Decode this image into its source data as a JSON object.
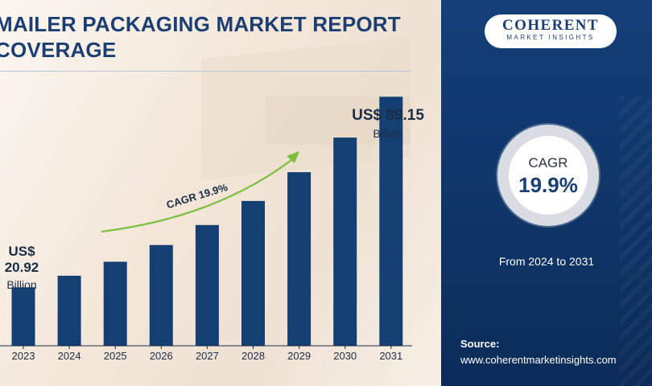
{
  "header": {
    "title": "MAILER PACKAGING MARKET REPORT COVERAGE"
  },
  "brand": {
    "name": "COHERENT",
    "tagline": "MARKET INSIGHTS"
  },
  "kpi": {
    "label": "CAGR",
    "value": "19.9%",
    "period": "From 2024 to 2031"
  },
  "source": {
    "label": "Source:",
    "url": "www.coherentmarketinsights.com"
  },
  "colors": {
    "bar": "#143f73",
    "arrow": "#7cbf3d",
    "panel": "#143f79",
    "title": "#1c3f73"
  },
  "chart_data": {
    "type": "bar",
    "categories": [
      "2023",
      "2024",
      "2025",
      "2026",
      "2027",
      "2028",
      "2029",
      "2030",
      "2031"
    ],
    "values": [
      20.92,
      25.08,
      30.07,
      36.06,
      43.24,
      51.84,
      62.16,
      74.53,
      89.15
    ],
    "ylim": [
      0,
      95
    ],
    "annotations": {
      "start": {
        "value": "US$ 20.92",
        "unit": "Billion"
      },
      "end": {
        "value": "US$ 89.15",
        "unit": "Billion"
      },
      "trend": "CAGR 19.9%"
    }
  }
}
